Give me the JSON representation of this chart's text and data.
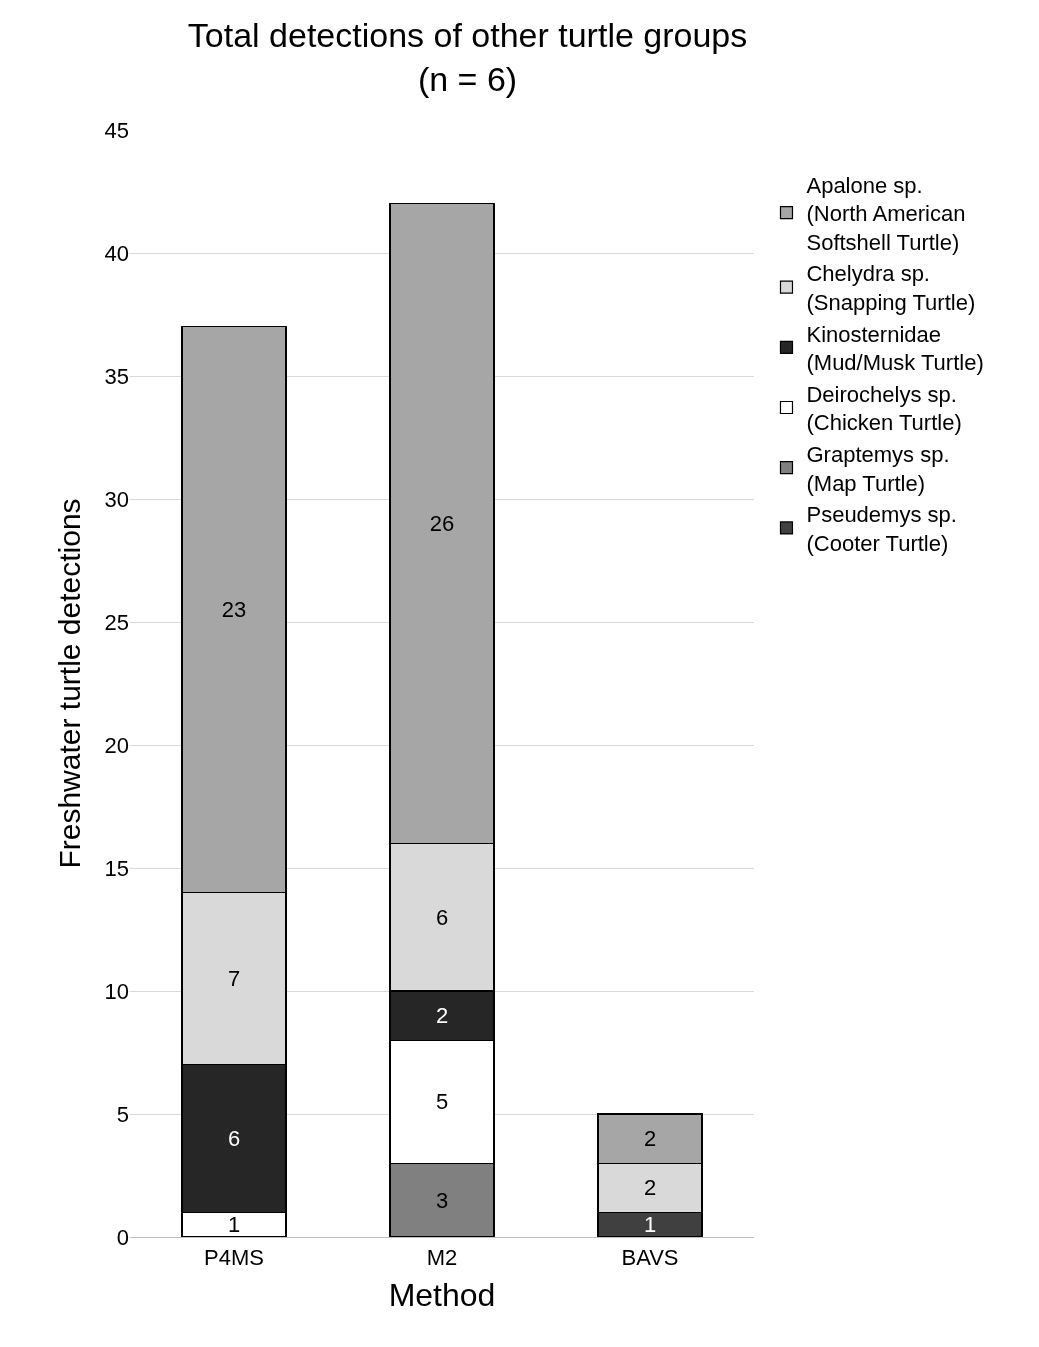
{
  "chart_data": {
    "type": "bar",
    "stacked": true,
    "title": "Total detections of other turtle groups\n(n = 6)",
    "xlabel": "Method",
    "ylabel": "Freshwater turtle detections",
    "categories": [
      "P4MS",
      "M2",
      "BAVS"
    ],
    "series": [
      {
        "name": "Pseudemys sp.\n(Cooter Turtle)",
        "color": "#404040",
        "values": [
          null,
          null,
          1
        ]
      },
      {
        "name": "Graptemys sp.\n(Map Turtle)",
        "color": "#808080",
        "values": [
          null,
          3,
          null
        ]
      },
      {
        "name": "Deirochelys sp.\n(Chicken Turtle)",
        "color": "#ffffff",
        "values": [
          1,
          5,
          null
        ]
      },
      {
        "name": "Kinosternidae\n(Mud/Musk Turtle)",
        "color": "#262626",
        "values": [
          6,
          2,
          null
        ]
      },
      {
        "name": "Chelydra sp.\n(Snapping Turtle)",
        "color": "#d9d9d9",
        "values": [
          7,
          6,
          2
        ]
      },
      {
        "name": "Apalone sp.\n(North American\nSoftshell Turtle)",
        "color": "#a6a6a6",
        "values": [
          23,
          26,
          2
        ]
      }
    ],
    "ylim": [
      0,
      45
    ],
    "yticks": [
      0,
      5,
      10,
      15,
      20,
      25,
      30,
      35,
      40,
      45
    ],
    "grid": "y",
    "legend": "right",
    "data_labels": true
  }
}
